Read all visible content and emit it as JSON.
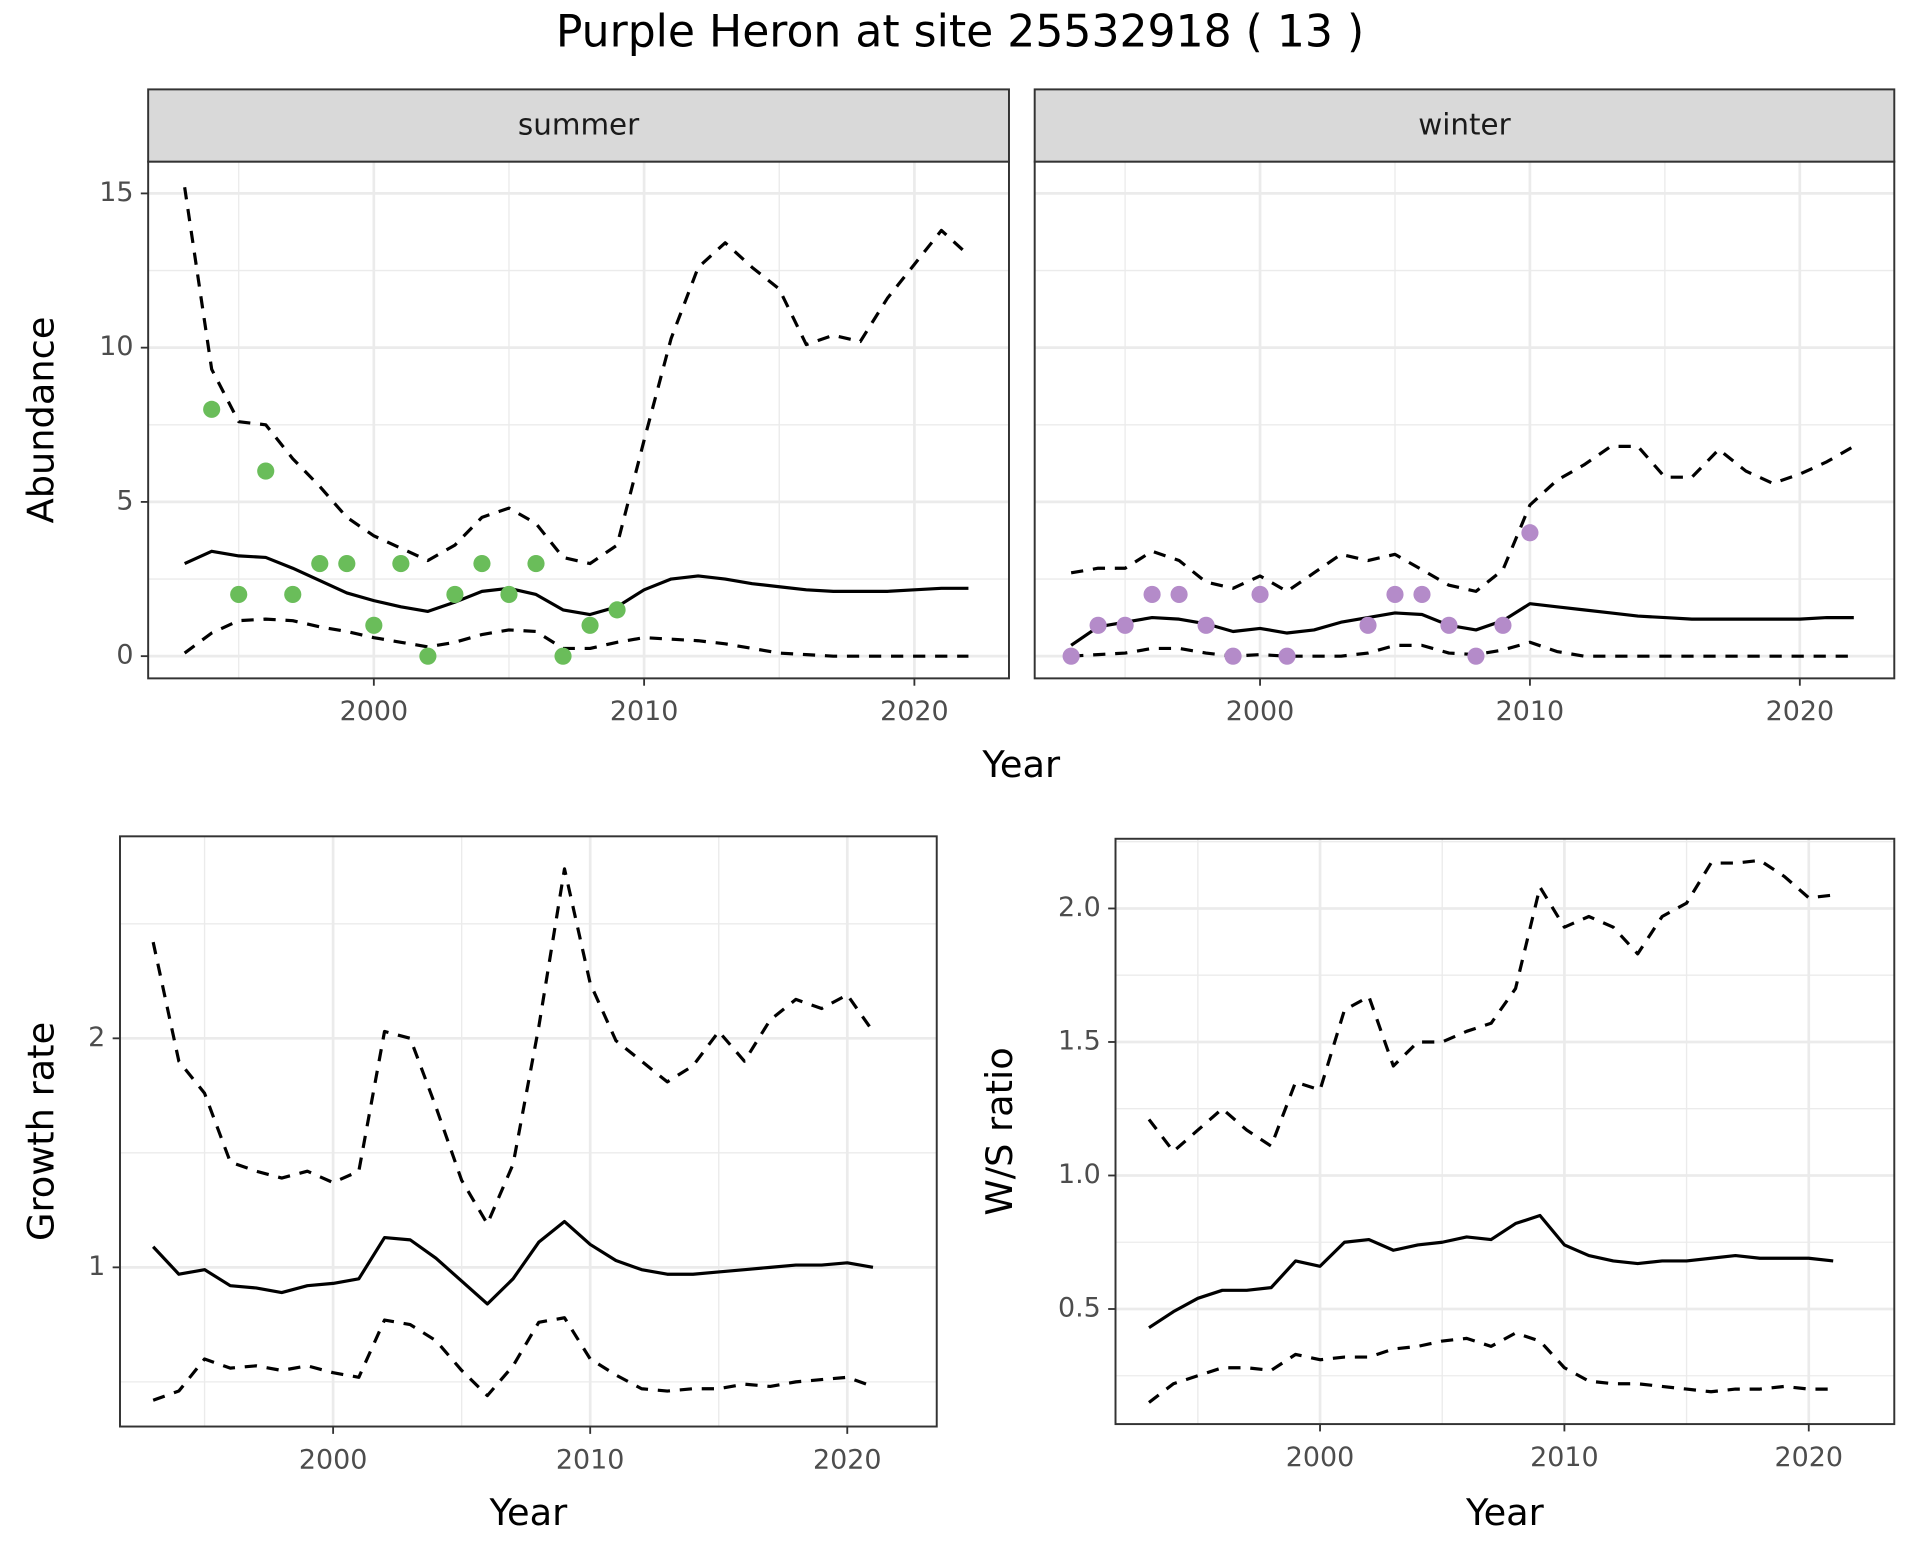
{
  "title": "Purple Heron at site 25532918 ( 13 )",
  "chart_data": [
    {
      "type": "line",
      "xlabel": "Year",
      "ylabel": "Abundance",
      "xlim": [
        1991.65,
        2023.5
      ],
      "ylim": [
        -0.72,
        16.03
      ],
      "xticks": [
        2000,
        2010,
        2020
      ],
      "yticks": [
        0,
        5,
        10,
        15
      ],
      "grid": true,
      "panels": [
        {
          "strip": "summer",
          "x": [
            1993,
            1994,
            1995,
            1996,
            1997,
            1998,
            1999,
            2000,
            2001,
            2002,
            2003,
            2004,
            2005,
            2006,
            2007,
            2008,
            2009,
            2010,
            2011,
            2012,
            2013,
            2014,
            2015,
            2016,
            2017,
            2018,
            2019,
            2020,
            2021,
            2022
          ],
          "series": [
            {
              "style": "solid",
              "color": "#000000",
              "values": [
                3.0,
                3.4,
                3.25,
                3.2,
                2.85,
                2.45,
                2.05,
                1.8,
                1.6,
                1.45,
                1.75,
                2.1,
                2.2,
                2.0,
                1.5,
                1.35,
                1.6,
                2.15,
                2.5,
                2.6,
                2.5,
                2.35,
                2.25,
                2.15,
                2.1,
                2.1,
                2.1,
                2.15,
                2.2,
                2.2
              ]
            },
            {
              "style": "dashed",
              "color": "#000000",
              "values": [
                15.2,
                9.3,
                7.6,
                7.5,
                6.4,
                5.5,
                4.5,
                3.9,
                3.5,
                3.1,
                3.6,
                4.5,
                4.8,
                4.3,
                3.2,
                3.0,
                3.6,
                7.0,
                10.3,
                12.6,
                13.4,
                12.6,
                11.9,
                10.1,
                10.4,
                10.2,
                11.6,
                12.7,
                13.8,
                13.0
              ]
            },
            {
              "style": "dashed",
              "color": "#000000",
              "values": [
                0.1,
                0.75,
                1.15,
                1.2,
                1.15,
                0.95,
                0.8,
                0.6,
                0.45,
                0.3,
                0.45,
                0.7,
                0.85,
                0.8,
                0.25,
                0.25,
                0.45,
                0.6,
                0.55,
                0.5,
                0.4,
                0.25,
                0.1,
                0.05,
                0,
                0,
                0,
                0,
                0,
                0
              ]
            },
            {
              "style": "point",
              "color": "#6abd5a",
              "x": [
                1994,
                1995,
                1996,
                1997,
                1998,
                1999,
                2000,
                2001,
                2002,
                2003,
                2004,
                2005,
                2006,
                2007,
                2008,
                2009
              ],
              "values": [
                8,
                2,
                6,
                2,
                3,
                3,
                1,
                3,
                0,
                2,
                3,
                2,
                3,
                0,
                1,
                1.5
              ]
            }
          ]
        },
        {
          "strip": "winter",
          "x": [
            1993,
            1994,
            1995,
            1996,
            1997,
            1998,
            1999,
            2000,
            2001,
            2002,
            2003,
            2004,
            2005,
            2006,
            2007,
            2008,
            2009,
            2010,
            2011,
            2012,
            2013,
            2014,
            2015,
            2016,
            2017,
            2018,
            2019,
            2020,
            2021,
            2022
          ],
          "series": [
            {
              "style": "solid",
              "color": "#000000",
              "values": [
                0.35,
                0.95,
                1.1,
                1.25,
                1.2,
                1.05,
                0.8,
                0.9,
                0.75,
                0.85,
                1.1,
                1.25,
                1.4,
                1.35,
                1.0,
                0.85,
                1.15,
                1.7,
                1.6,
                1.5,
                1.4,
                1.3,
                1.25,
                1.2,
                1.2,
                1.2,
                1.2,
                1.2,
                1.25,
                1.25
              ]
            },
            {
              "style": "dashed",
              "color": "#000000",
              "values": [
                2.7,
                2.85,
                2.85,
                3.4,
                3.1,
                2.4,
                2.2,
                2.6,
                2.1,
                2.7,
                3.3,
                3.1,
                3.3,
                2.8,
                2.3,
                2.1,
                2.8,
                4.9,
                5.7,
                6.2,
                6.8,
                6.8,
                5.8,
                5.8,
                6.7,
                6.0,
                5.6,
                5.9,
                6.3,
                6.8
              ]
            },
            {
              "style": "dashed",
              "color": "#000000",
              "values": [
                0,
                0.05,
                0.1,
                0.25,
                0.25,
                0.1,
                0,
                0.05,
                0,
                0,
                0,
                0.1,
                0.35,
                0.35,
                0.1,
                0.05,
                0.2,
                0.45,
                0.15,
                0,
                0,
                0,
                0,
                0,
                0,
                0,
                0,
                0,
                0,
                0
              ]
            },
            {
              "style": "point",
              "color": "#b48bc9",
              "x": [
                1993,
                1994,
                1995,
                1996,
                1997,
                1998,
                1999,
                2000,
                2001,
                2004,
                2005,
                2006,
                2007,
                2008,
                2009,
                2010
              ],
              "values": [
                0,
                1,
                1,
                2,
                2,
                1,
                0,
                2,
                0,
                1,
                2,
                2,
                1,
                0,
                1,
                4
              ]
            }
          ]
        }
      ]
    },
    {
      "type": "line",
      "xlabel": "Year",
      "ylabel": "Growth rate",
      "xlim": [
        1991.71,
        2023.48
      ],
      "ylim": [
        0.305,
        2.882
      ],
      "xticks": [
        2000,
        2010,
        2020
      ],
      "yticks": [
        1,
        2
      ],
      "grid": true,
      "x": [
        1993,
        1994,
        1995,
        1996,
        1997,
        1998,
        1999,
        2000,
        2001,
        2002,
        2003,
        2004,
        2005,
        2006,
        2007,
        2008,
        2009,
        2010,
        2011,
        2012,
        2013,
        2014,
        2015,
        2016,
        2017,
        2018,
        2019,
        2020,
        2021
      ],
      "series": [
        {
          "style": "solid",
          "color": "#000000",
          "values": [
            1.09,
            0.97,
            0.99,
            0.92,
            0.91,
            0.89,
            0.92,
            0.93,
            0.95,
            1.13,
            1.12,
            1.04,
            0.94,
            0.84,
            0.95,
            1.11,
            1.2,
            1.1,
            1.03,
            0.99,
            0.97,
            0.97,
            0.98,
            0.99,
            1.0,
            1.01,
            1.01,
            1.02,
            1.0
          ]
        },
        {
          "style": "dashed",
          "color": "#000000",
          "values": [
            2.42,
            1.9,
            1.76,
            1.46,
            1.42,
            1.39,
            1.42,
            1.37,
            1.42,
            2.03,
            2.0,
            1.7,
            1.38,
            1.19,
            1.45,
            2.05,
            2.74,
            2.24,
            1.99,
            1.9,
            1.81,
            1.88,
            2.03,
            1.9,
            2.08,
            2.17,
            2.13,
            2.19,
            2.03
          ]
        },
        {
          "style": "dashed",
          "color": "#000000",
          "values": [
            0.42,
            0.46,
            0.6,
            0.56,
            0.57,
            0.55,
            0.57,
            0.54,
            0.52,
            0.77,
            0.75,
            0.68,
            0.55,
            0.44,
            0.57,
            0.76,
            0.78,
            0.6,
            0.53,
            0.47,
            0.46,
            0.47,
            0.47,
            0.49,
            0.48,
            0.5,
            0.51,
            0.52,
            0.48
          ]
        }
      ]
    },
    {
      "type": "line",
      "xlabel": "Year",
      "ylabel": "W/S ratio",
      "xlim": [
        1991.63,
        2023.5
      ],
      "ylim": [
        0.069,
        2.261
      ],
      "xticks": [
        2000,
        2010,
        2020
      ],
      "yticks": [
        0.5,
        {
          "value": 1,
          "label": "1.0"
        },
        1.5,
        {
          "value": 2,
          "label": "2.0"
        }
      ],
      "grid": true,
      "x": [
        1993,
        1994,
        1995,
        1996,
        1997,
        1998,
        1999,
        2000,
        2001,
        2002,
        2003,
        2004,
        2005,
        2006,
        2007,
        2008,
        2009,
        2010,
        2011,
        2012,
        2013,
        2014,
        2015,
        2016,
        2017,
        2018,
        2019,
        2020,
        2021
      ],
      "series": [
        {
          "style": "solid",
          "color": "#000000",
          "values": [
            0.43,
            0.49,
            0.54,
            0.57,
            0.57,
            0.58,
            0.68,
            0.66,
            0.75,
            0.76,
            0.72,
            0.74,
            0.75,
            0.77,
            0.76,
            0.82,
            0.85,
            0.74,
            0.7,
            0.68,
            0.67,
            0.68,
            0.68,
            0.69,
            0.7,
            0.69,
            0.69,
            0.69,
            0.68
          ]
        },
        {
          "style": "dashed",
          "color": "#000000",
          "values": [
            1.21,
            1.09,
            1.17,
            1.25,
            1.17,
            1.11,
            1.35,
            1.32,
            1.62,
            1.67,
            1.41,
            1.5,
            1.5,
            1.54,
            1.57,
            1.7,
            2.08,
            1.93,
            1.97,
            1.93,
            1.83,
            1.97,
            2.02,
            2.17,
            2.17,
            2.18,
            2.12,
            2.04,
            2.05
          ]
        },
        {
          "style": "dashed",
          "color": "#000000",
          "values": [
            0.15,
            0.22,
            0.25,
            0.28,
            0.28,
            0.27,
            0.33,
            0.31,
            0.32,
            0.32,
            0.35,
            0.36,
            0.38,
            0.39,
            0.36,
            0.41,
            0.38,
            0.28,
            0.23,
            0.22,
            0.22,
            0.21,
            0.2,
            0.19,
            0.2,
            0.2,
            0.21,
            0.2,
            0.2
          ]
        }
      ]
    }
  ]
}
